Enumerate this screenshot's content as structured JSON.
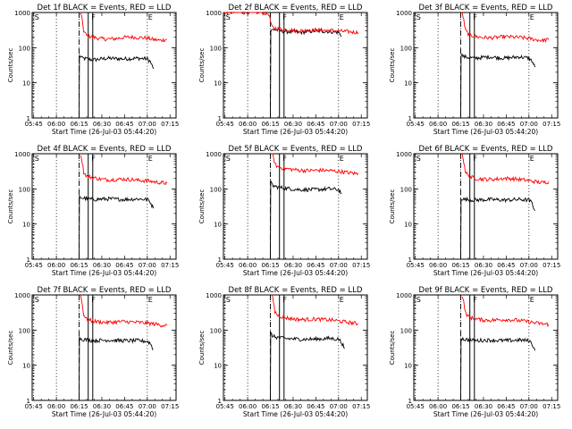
{
  "colors": {
    "events": "#000000",
    "lld": "#ff0000",
    "axis": "#000000",
    "background": "#ffffff"
  },
  "common": {
    "ylabel": "Counts/sec",
    "xlabel": "Start Time (26-Jul-03 05:44:20)",
    "x_ticks": [
      "05:45",
      "06:00",
      "06:15",
      "06:30",
      "06:45",
      "07:00",
      "07:15"
    ],
    "y_ticks": [
      "1",
      "10",
      "100",
      "1000"
    ],
    "marker_labels": {
      "S": "S",
      "F": "F",
      "E": "E"
    }
  },
  "chart_data": [
    {
      "type": "line",
      "title": "Det 1f BLACK = Events, RED = LLD",
      "xlim": [
        0,
        95
      ],
      "ylim": [
        1,
        1000
      ],
      "yscale": "log",
      "x_ticks_min": [
        1,
        16,
        31,
        46,
        61,
        76,
        91
      ],
      "dotted_lines": [
        1,
        16,
        31,
        76
      ],
      "dashed_lines": [
        31
      ],
      "markers": {
        "S": 1,
        "F": 38.5,
        "E": 76
      },
      "box": [
        37,
        40
      ],
      "series": [
        {
          "name": "Events",
          "color": "#000000",
          "x": [
            31,
            31.2,
            33,
            40,
            50,
            60,
            70,
            76,
            78,
            80
          ],
          "y": [
            1,
            60,
            50,
            45,
            50,
            48,
            50,
            48,
            40,
            25
          ]
        },
        {
          "name": "LLD",
          "color": "#ff0000",
          "x": [
            32,
            33,
            34,
            36,
            40,
            45,
            50,
            55,
            60,
            65,
            70,
            75,
            80,
            85,
            89
          ],
          "y": [
            1000,
            600,
            300,
            220,
            200,
            180,
            175,
            180,
            195,
            200,
            195,
            190,
            170,
            160,
            175
          ]
        }
      ]
    },
    {
      "type": "line",
      "title": "Det 2f BLACK = Events, RED = LLD",
      "xlim": [
        0,
        95
      ],
      "ylim": [
        1,
        1000
      ],
      "yscale": "log",
      "x_ticks_min": [
        1,
        16,
        31,
        46,
        61,
        76,
        91
      ],
      "dotted_lines": [
        1,
        16,
        31,
        76
      ],
      "dashed_lines": [
        31
      ],
      "markers": {
        "S": 1,
        "F": 38.5,
        "E": 76
      },
      "box": [
        37,
        40
      ],
      "series": [
        {
          "name": "Events",
          "color": "#000000",
          "x": [
            31,
            31.3,
            33,
            40,
            50,
            60,
            70,
            76,
            78
          ],
          "y": [
            1,
            300,
            330,
            290,
            270,
            300,
            290,
            270,
            210
          ]
        },
        {
          "name": "LLD",
          "color": "#ff0000",
          "x": [
            0,
            15,
            25,
            30,
            32,
            35,
            40,
            50,
            60,
            70,
            80,
            89
          ],
          "y": [
            1000,
            1000,
            1000,
            900,
            380,
            350,
            330,
            300,
            320,
            310,
            290,
            270
          ]
        }
      ]
    },
    {
      "type": "line",
      "title": "Det 3f BLACK = Events, RED = LLD",
      "xlim": [
        0,
        95
      ],
      "ylim": [
        1,
        1000
      ],
      "yscale": "log",
      "x_ticks_min": [
        1,
        16,
        31,
        46,
        61,
        76,
        91
      ],
      "dotted_lines": [
        1,
        16,
        31,
        76
      ],
      "dashed_lines": [
        31
      ],
      "markers": {
        "S": 1,
        "F": 38.5,
        "E": 76
      },
      "box": [
        37,
        40
      ],
      "series": [
        {
          "name": "Events",
          "color": "#000000",
          "x": [
            31,
            31.2,
            33,
            40,
            50,
            60,
            70,
            76,
            78,
            80
          ],
          "y": [
            1,
            65,
            55,
            50,
            55,
            50,
            55,
            50,
            42,
            28
          ]
        },
        {
          "name": "LLD",
          "color": "#ff0000",
          "x": [
            32,
            33,
            34,
            36,
            40,
            45,
            50,
            55,
            60,
            65,
            70,
            75,
            80,
            85,
            89
          ],
          "y": [
            1000,
            600,
            320,
            240,
            210,
            195,
            190,
            195,
            205,
            200,
            195,
            185,
            170,
            160,
            170
          ]
        }
      ]
    },
    {
      "type": "line",
      "title": "Det 4f BLACK = Events, RED = LLD",
      "xlim": [
        0,
        95
      ],
      "ylim": [
        1,
        1000
      ],
      "yscale": "log",
      "x_ticks_min": [
        1,
        16,
        31,
        46,
        61,
        76,
        91
      ],
      "dotted_lines": [
        1,
        16,
        31,
        76
      ],
      "dashed_lines": [
        31
      ],
      "markers": {
        "S": 1,
        "F": 38.5,
        "E": 76
      },
      "box": [
        37,
        40
      ],
      "series": [
        {
          "name": "Events",
          "color": "#000000",
          "x": [
            31,
            31.2,
            33,
            40,
            50,
            60,
            70,
            76,
            78,
            80
          ],
          "y": [
            1,
            60,
            55,
            50,
            52,
            50,
            52,
            50,
            42,
            28
          ]
        },
        {
          "name": "LLD",
          "color": "#ff0000",
          "x": [
            32,
            33,
            34,
            36,
            40,
            45,
            50,
            55,
            60,
            65,
            70,
            75,
            80,
            85,
            89
          ],
          "y": [
            1000,
            600,
            300,
            230,
            210,
            190,
            180,
            185,
            190,
            185,
            175,
            170,
            160,
            150,
            145
          ]
        }
      ]
    },
    {
      "type": "line",
      "title": "Det 5f BLACK = Events, RED = LLD",
      "xlim": [
        0,
        95
      ],
      "ylim": [
        1,
        1000
      ],
      "yscale": "log",
      "x_ticks_min": [
        1,
        16,
        31,
        46,
        61,
        76,
        91
      ],
      "dotted_lines": [
        1,
        16,
        31,
        76
      ],
      "dashed_lines": [
        31
      ],
      "markers": {
        "S": 1,
        "F": 38.5,
        "E": 76
      },
      "box": [
        37,
        40
      ],
      "series": [
        {
          "name": "Events",
          "color": "#000000",
          "x": [
            31,
            31.2,
            33,
            40,
            50,
            60,
            70,
            76,
            78
          ],
          "y": [
            1,
            150,
            120,
            105,
            95,
            95,
            100,
            95,
            75
          ]
        },
        {
          "name": "LLD",
          "color": "#ff0000",
          "x": [
            32,
            33,
            34,
            36,
            40,
            45,
            50,
            55,
            60,
            65,
            70,
            75,
            80,
            85,
            89
          ],
          "y": [
            1000,
            800,
            500,
            420,
            380,
            360,
            340,
            330,
            335,
            340,
            330,
            320,
            300,
            280,
            270
          ]
        }
      ]
    },
    {
      "type": "line",
      "title": "Det 6f BLACK = Events, RED = LLD",
      "xlim": [
        0,
        95
      ],
      "ylim": [
        1,
        1000
      ],
      "yscale": "log",
      "x_ticks_min": [
        1,
        16,
        31,
        46,
        61,
        76,
        91
      ],
      "dotted_lines": [
        1,
        16,
        31,
        76
      ],
      "dashed_lines": [
        31
      ],
      "markers": {
        "S": 1,
        "F": 38.5,
        "E": 76
      },
      "box": [
        37,
        40
      ],
      "series": [
        {
          "name": "Events",
          "color": "#000000",
          "x": [
            31,
            31.2,
            33,
            40,
            50,
            60,
            70,
            76,
            78,
            80
          ],
          "y": [
            1,
            55,
            50,
            48,
            50,
            48,
            50,
            48,
            40,
            24
          ]
        },
        {
          "name": "LLD",
          "color": "#ff0000",
          "x": [
            32,
            33,
            34,
            36,
            40,
            45,
            50,
            55,
            60,
            65,
            70,
            75,
            80,
            85,
            89
          ],
          "y": [
            1000,
            600,
            320,
            230,
            200,
            190,
            185,
            190,
            200,
            195,
            185,
            175,
            160,
            150,
            160
          ]
        }
      ]
    },
    {
      "type": "line",
      "title": "Det 7f BLACK = Events, RED = LLD",
      "xlim": [
        0,
        95
      ],
      "ylim": [
        1,
        1000
      ],
      "yscale": "log",
      "x_ticks_min": [
        1,
        16,
        31,
        46,
        61,
        76,
        91
      ],
      "dotted_lines": [
        1,
        16,
        31,
        76
      ],
      "dashed_lines": [
        31
      ],
      "markers": {
        "S": 1,
        "F": 38.5,
        "E": 76
      },
      "box": [
        37,
        40
      ],
      "series": [
        {
          "name": "Events",
          "color": "#000000",
          "x": [
            31,
            31.2,
            33,
            40,
            50,
            60,
            70,
            76,
            78,
            80
          ],
          "y": [
            1,
            60,
            55,
            50,
            52,
            50,
            50,
            48,
            42,
            28
          ]
        },
        {
          "name": "LLD",
          "color": "#ff0000",
          "x": [
            32,
            33,
            34,
            36,
            40,
            45,
            50,
            55,
            60,
            65,
            70,
            75,
            80,
            85,
            89
          ],
          "y": [
            1000,
            550,
            280,
            200,
            180,
            170,
            165,
            170,
            175,
            170,
            165,
            160,
            150,
            140,
            135
          ]
        }
      ]
    },
    {
      "type": "line",
      "title": "Det 8f BLACK = Events, RED = LLD",
      "xlim": [
        0,
        95
      ],
      "ylim": [
        1,
        1000
      ],
      "yscale": "log",
      "x_ticks_min": [
        1,
        16,
        31,
        46,
        61,
        76,
        91
      ],
      "dotted_lines": [
        1,
        16,
        31,
        76
      ],
      "dashed_lines": [
        31
      ],
      "markers": {
        "S": 1,
        "F": 38.5,
        "E": 76
      },
      "box": [
        37,
        40
      ],
      "series": [
        {
          "name": "Events",
          "color": "#000000",
          "x": [
            31,
            31.2,
            33,
            40,
            50,
            60,
            70,
            76,
            78,
            80
          ],
          "y": [
            1,
            80,
            65,
            58,
            55,
            55,
            58,
            55,
            45,
            30
          ]
        },
        {
          "name": "LLD",
          "color": "#ff0000",
          "x": [
            32,
            33,
            34,
            36,
            40,
            45,
            50,
            55,
            60,
            65,
            70,
            75,
            80,
            85,
            89
          ],
          "y": [
            1000,
            650,
            330,
            260,
            230,
            210,
            200,
            200,
            205,
            200,
            195,
            185,
            170,
            160,
            150
          ]
        }
      ]
    },
    {
      "type": "line",
      "title": "Det 9f BLACK = Events, RED = LLD",
      "xlim": [
        0,
        95
      ],
      "ylim": [
        1,
        1000
      ],
      "yscale": "log",
      "x_ticks_min": [
        1,
        16,
        31,
        46,
        61,
        76,
        91
      ],
      "dotted_lines": [
        1,
        16,
        31,
        76
      ],
      "dashed_lines": [
        31
      ],
      "markers": {
        "S": 1,
        "F": 38.5,
        "E": 76
      },
      "box": [
        37,
        40
      ],
      "series": [
        {
          "name": "Events",
          "color": "#000000",
          "x": [
            31,
            31.2,
            33,
            40,
            50,
            60,
            70,
            76,
            78,
            80
          ],
          "y": [
            1,
            60,
            55,
            50,
            52,
            50,
            52,
            50,
            42,
            26
          ]
        },
        {
          "name": "LLD",
          "color": "#ff0000",
          "x": [
            32,
            33,
            34,
            36,
            40,
            45,
            50,
            55,
            60,
            65,
            70,
            75,
            80,
            85,
            89
          ],
          "y": [
            1000,
            600,
            320,
            240,
            210,
            195,
            190,
            195,
            200,
            195,
            185,
            175,
            160,
            150,
            145
          ]
        }
      ]
    }
  ]
}
